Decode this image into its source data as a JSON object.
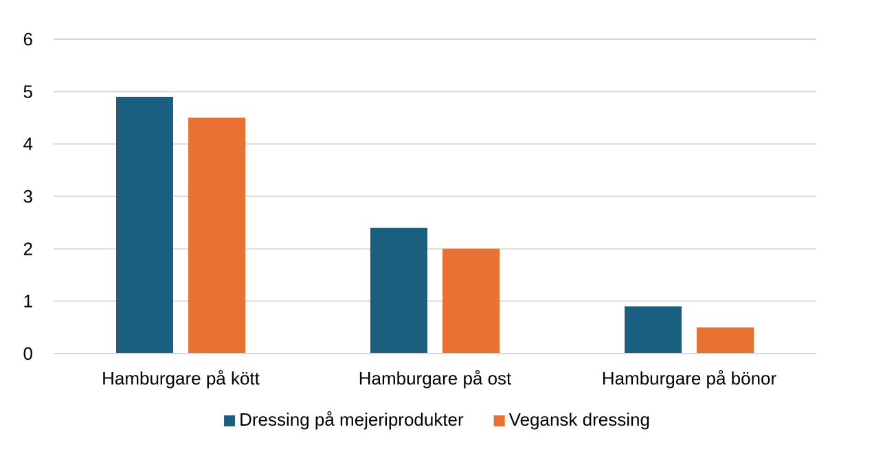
{
  "chart_data": {
    "type": "bar",
    "title": "",
    "xlabel": "",
    "ylabel": "",
    "categories": [
      "Hamburgare på kött",
      "Hamburgare på ost",
      "Hamburgare på bönor"
    ],
    "series": [
      {
        "name": "Dressing på mejeriprodukter",
        "values": [
          4.9,
          2.4,
          0.9
        ],
        "color": "#1a5f80"
      },
      {
        "name": "Vegansk dressing",
        "values": [
          4.5,
          2.0,
          0.5
        ],
        "color": "#e97132"
      }
    ],
    "ylim": [
      0,
      6
    ],
    "yticks": [
      "0",
      "1",
      "2",
      "3",
      "4",
      "5",
      "6"
    ],
    "grid": true,
    "legend_position": "bottom"
  }
}
